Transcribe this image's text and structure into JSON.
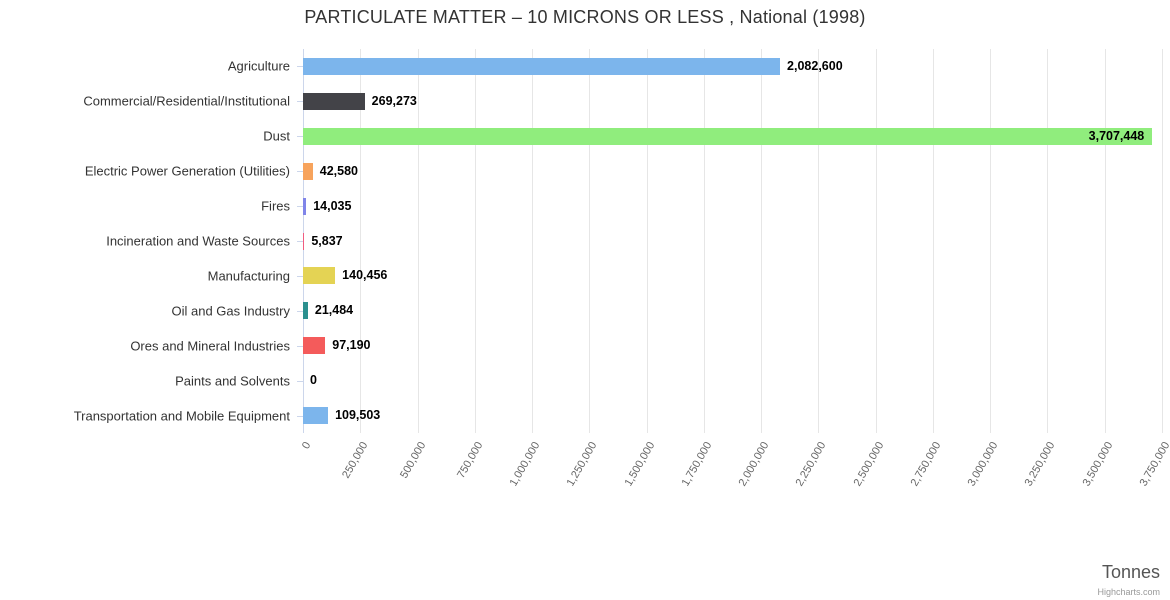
{
  "credit": "Highcharts.com",
  "chart_data": {
    "type": "bar",
    "orientation": "horizontal",
    "title": "PARTICULATE MATTER – 10 MICRONS OR LESS , National (1998)",
    "xlabel": "Tonnes",
    "xlim": [
      0,
      3750000
    ],
    "tick_interval": 250000,
    "grid": true,
    "legend": false,
    "categories": [
      "Agriculture",
      "Commercial/Residential/Institutional",
      "Dust",
      "Electric Power Generation (Utilities)",
      "Fires",
      "Incineration and Waste Sources",
      "Manufacturing",
      "Oil and Gas Industry",
      "Ores and Mineral Industries",
      "Paints and Solvents",
      "Transportation and Mobile Equipment"
    ],
    "values": [
      2082600,
      269273,
      3707448,
      42580,
      14035,
      5837,
      140456,
      21484,
      97190,
      0,
      109503
    ],
    "value_labels": [
      "2,082,600",
      "269,273",
      "3,707,448",
      "42,580",
      "14,035",
      "5,837",
      "140,456",
      "21,484",
      "97,190",
      "0",
      "109,503"
    ],
    "colors": [
      "#7cb5ec",
      "#434348",
      "#90ed7d",
      "#f7a35c",
      "#8085e9",
      "#f15c80",
      "#e4d354",
      "#2b908f",
      "#f45b5b",
      "#91e8e1",
      "#7cb5ec"
    ],
    "ticks": [
      0,
      250000,
      500000,
      750000,
      1000000,
      1250000,
      1500000,
      1750000,
      2000000,
      2250000,
      2500000,
      2750000,
      3000000,
      3250000,
      3500000,
      3750000
    ],
    "tick_labels": [
      "0",
      "250,000",
      "500,000",
      "750,000",
      "1,000,000",
      "1,250,000",
      "1,500,000",
      "1,750,000",
      "2,000,000",
      "2,250,000",
      "2,500,000",
      "2,750,000",
      "3,000,000",
      "3,250,000",
      "3,500,000",
      "3,750,000"
    ]
  }
}
